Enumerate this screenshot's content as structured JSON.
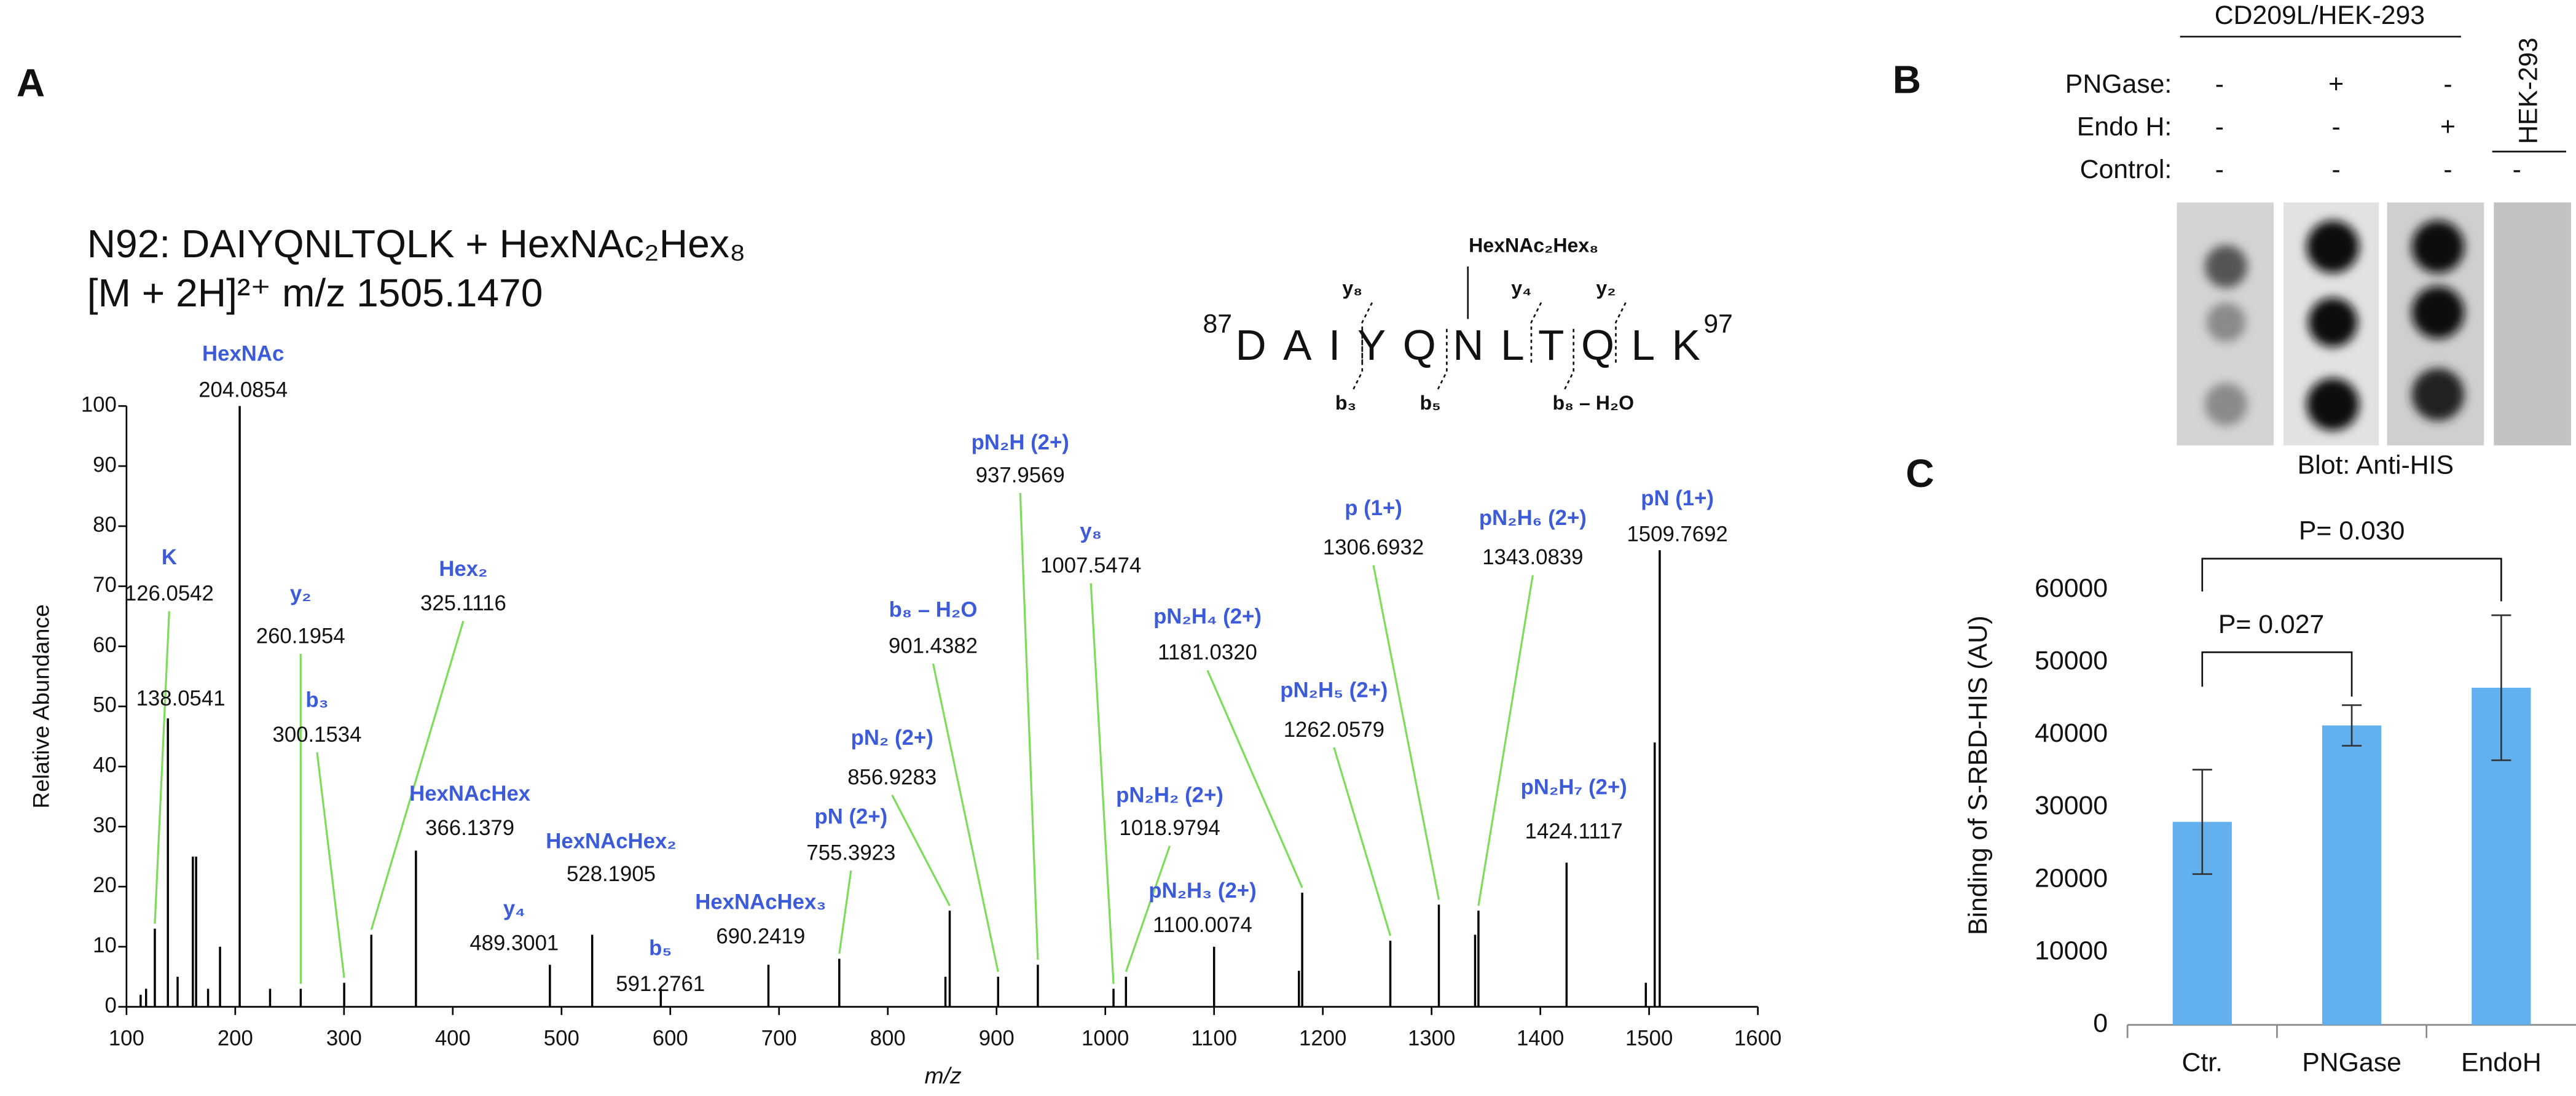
{
  "panel_labels": [
    "A",
    "B",
    "C"
  ],
  "blot_panel": {
    "group_label": "CD209L/HEK-293",
    "control_cell_label": "HEK-293",
    "treatments": [
      {
        "label": "PNGase:",
        "signs": [
          "-",
          "+",
          "-"
        ]
      },
      {
        "label": "Endo H:",
        "signs": [
          "-",
          "-",
          "+"
        ]
      },
      {
        "label": "Control:",
        "signs": [
          "-",
          "-",
          "-",
          "-"
        ]
      }
    ],
    "caption": "Blot: Anti-HIS"
  },
  "chart_data": [
    {
      "type": "spectrum",
      "title": "N92: DAIYQNLTQLK + HexNAc₂Hex₈",
      "subtitle": "[M + 2H]²⁺ m/z 1505.1470",
      "x_label": "m/z",
      "y_label": "Relative Abundance",
      "xlim": [
        100,
        1600
      ],
      "xticks": [
        100,
        200,
        300,
        400,
        500,
        600,
        700,
        800,
        900,
        1000,
        1100,
        1200,
        1300,
        1400,
        1500,
        1600
      ],
      "ylim": [
        0,
        100
      ],
      "yticks": [
        0,
        10,
        20,
        30,
        40,
        50,
        60,
        70,
        80,
        90,
        100
      ],
      "color": "#000000",
      "label_color": "#3b5bdb",
      "leader_color": "#7ddc5a",
      "x": [
        113,
        118,
        126.0542,
        138.0541,
        147,
        161,
        164,
        175,
        186,
        204.0854,
        232,
        260.1954,
        300.1534,
        325.1116,
        366.1379,
        489.3001,
        528.1905,
        591.2761,
        690.2419,
        755.3923,
        853,
        856.9283,
        901.4382,
        937.9569,
        1007.5474,
        1018.9794,
        1100.0074,
        1178,
        1181.032,
        1262.0579,
        1306.6932,
        1340,
        1343.0839,
        1424.1117,
        1497,
        1505.147,
        1509.7692
      ],
      "values": [
        2,
        3,
        13,
        48,
        5,
        25,
        25,
        3,
        10,
        100,
        3,
        3,
        4,
        12,
        26,
        7,
        12,
        3,
        7,
        8,
        5,
        16,
        5,
        7,
        3,
        5,
        10,
        6,
        19,
        11,
        17,
        12,
        16,
        24,
        4,
        44,
        76
      ],
      "labels": [
        null,
        null,
        "K",
        null,
        null,
        null,
        null,
        null,
        null,
        "HexNAc",
        null,
        "y₂",
        "b₃",
        "Hex₂",
        "HexNAcHex",
        "y₄",
        "HexNAcHex₂",
        "b₅",
        "HexNAcHex₃",
        "pN (2+)",
        null,
        "pN₂ (2+)",
        "b₈ – H₂O",
        "pN₂H (2+)",
        "y₈",
        "pN₂H₂ (2+)",
        "pN₂H₃ (2+)",
        null,
        "pN₂H₄ (2+)",
        "pN₂H₅ (2+)",
        "p (1+)",
        null,
        "pN₂H₆ (2+)",
        "pN₂H₇ (2+)",
        null,
        null,
        "pN (1+)"
      ],
      "x_labels": [
        null,
        null,
        "126.0542",
        "138.0541",
        null,
        null,
        null,
        null,
        null,
        "204.0854",
        null,
        "260.1954",
        "300.1534",
        "325.1116",
        "366.1379",
        "489.3001",
        "528.1905",
        "591.2761",
        "690.2419",
        "755.3923",
        null,
        "856.9283",
        "901.4382",
        "937.9569",
        "1007.5474",
        "1018.9794",
        "1100.0074",
        null,
        "1181.0320",
        "1262.0579",
        "1306.6932",
        null,
        "1343.0839",
        "1424.1117",
        null,
        null,
        "1509.7692"
      ],
      "sequence": {
        "start": 87,
        "residues": "DAIYQNLTQLK",
        "end": 97,
        "glycan": "HexNAc₂Hex₈",
        "y_ions": [
          "y₈",
          "y₄",
          "y₂"
        ],
        "b_ions": [
          "b₃",
          "b₅",
          "b₈ – H₂O"
        ]
      }
    },
    {
      "type": "bar",
      "y_label": "Binding of S-RBD-HIS (AU)",
      "categories": [
        "Ctr.",
        "PNGase",
        "EndoH"
      ],
      "values": [
        28000,
        41300,
        46500
      ],
      "errors": [
        7200,
        2800,
        10000
      ],
      "color": "#63b0ee",
      "ylim": [
        0,
        60000
      ],
      "yticks": [
        0,
        10000,
        20000,
        30000,
        40000,
        50000,
        60000
      ],
      "annotations": [
        "P= 0.027",
        "P= 0.030"
      ]
    }
  ]
}
